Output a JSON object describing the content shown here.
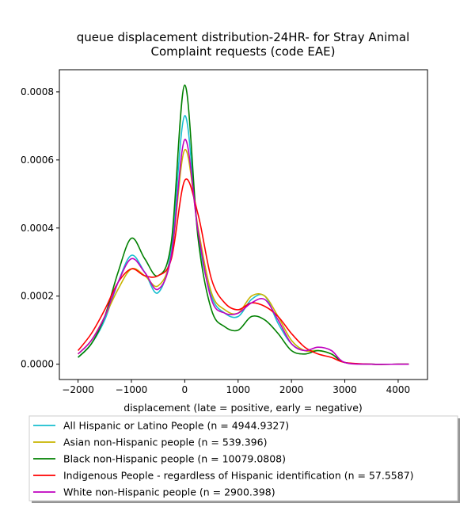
{
  "chart_data": {
    "type": "line",
    "title_line1": "queue displacement distribution-24HR-  for Stray Animal",
    "title_line2": "Complaint  requests (code EAE)",
    "xlabel": "displacement (late = positive, early = negative)",
    "ylabel": "",
    "xlim": [
      -2350,
      4550
    ],
    "ylim": [
      -4.5e-05,
      0.000865
    ],
    "xticks": [
      -2000,
      -1000,
      0,
      1000,
      2000,
      3000,
      4000
    ],
    "xtick_labels": [
      "−2000",
      "−1000",
      "0",
      "1000",
      "2000",
      "3000",
      "4000"
    ],
    "yticks": [
      0,
      0.0002,
      0.0004,
      0.0006,
      0.0008
    ],
    "ytick_labels": [
      "0.0000",
      "0.0002",
      "0.0004",
      "0.0006",
      "0.0008"
    ],
    "grid": false,
    "legend_placement": "below plot",
    "x": [
      -2000,
      -1750,
      -1500,
      -1250,
      -1000,
      -750,
      -500,
      -250,
      0,
      250,
      500,
      750,
      1000,
      1250,
      1500,
      1750,
      2000,
      2250,
      2500,
      2750,
      3000,
      3500,
      4000,
      4200
    ],
    "series": [
      {
        "name": "All Hispanic or Latino People (n = 4944.9327)",
        "color": "#17becf",
        "values": [
          2e-05,
          6e-05,
          0.00013,
          0.00024,
          0.00032,
          0.00027,
          0.00021,
          0.00034,
          0.00073,
          0.00038,
          0.0002,
          0.00015,
          0.00014,
          0.00019,
          0.0002,
          0.00012,
          6e-05,
          4e-05,
          4e-05,
          3e-05,
          5e-06,
          0,
          0,
          0
        ]
      },
      {
        "name": "Asian non-Hispanic people (n = 539.396)",
        "color": "#c8b400",
        "values": [
          3e-05,
          7e-05,
          0.00014,
          0.00022,
          0.00028,
          0.00026,
          0.00023,
          0.00032,
          0.00063,
          0.0004,
          0.00021,
          0.00016,
          0.00015,
          0.0002,
          0.0002,
          0.00014,
          7e-05,
          4e-05,
          4e-05,
          3e-05,
          5e-06,
          0,
          0,
          0
        ]
      },
      {
        "name": "Black non-Hispanic people (n = 10079.0808)",
        "color": "#008000",
        "values": [
          2e-05,
          6e-05,
          0.00014,
          0.00027,
          0.00037,
          0.00031,
          0.00026,
          0.00036,
          0.00082,
          0.00037,
          0.00016,
          0.00011,
          0.0001,
          0.00014,
          0.00013,
          9e-05,
          4e-05,
          3e-05,
          4e-05,
          3e-05,
          5e-06,
          0,
          0,
          0
        ]
      },
      {
        "name": "Indigenous People - regardless of Hispanic identification (n = 57.5587)",
        "color": "#ff0000",
        "values": [
          4e-05,
          9e-05,
          0.00016,
          0.00024,
          0.00028,
          0.00026,
          0.00026,
          0.00031,
          0.00054,
          0.00044,
          0.00025,
          0.00018,
          0.00016,
          0.00018,
          0.00017,
          0.00014,
          9e-05,
          5e-05,
          3e-05,
          2e-05,
          5e-06,
          0,
          0,
          0
        ]
      },
      {
        "name": "White non-Hispanic people (n = 2900.398)",
        "color": "#bf00bf",
        "values": [
          3e-05,
          7e-05,
          0.00014,
          0.00024,
          0.00031,
          0.00027,
          0.00022,
          0.00032,
          0.00066,
          0.00039,
          0.00019,
          0.00015,
          0.00015,
          0.00018,
          0.00019,
          0.00013,
          6e-05,
          4e-05,
          5e-05,
          4e-05,
          5e-06,
          0,
          0,
          0
        ]
      }
    ]
  }
}
